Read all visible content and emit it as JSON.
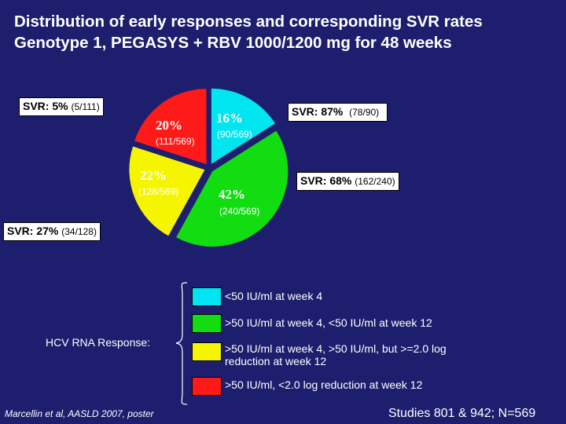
{
  "title": "Distribution of early responses and corresponding SVR rates Genotype 1, PEGASYS + RBV 1000/1200 mg for 48 weeks",
  "chart_data": {
    "type": "pie",
    "slices": [
      {
        "name": "<50 IU/ml at week 4",
        "percent": 16,
        "label": "16%",
        "count": "(90/569)",
        "svr_label": "SVR: 87%",
        "svr_count": "(78/90)",
        "color": "#00e5f0"
      },
      {
        "name": ">50 IU/ml at week 4, <50 IU/ml at week 12",
        "percent": 42,
        "label": "42%",
        "count": "(240/569)",
        "svr_label": "SVR: 68%",
        "svr_count": "(162/240)",
        "color": "#11dd11"
      },
      {
        "name": ">50 IU/ml at week 4, >50 IU/ml, but >=2.0 log reduction at week 12",
        "percent": 22,
        "label": "22%",
        "count": "(128/569)",
        "svr_label": "SVR: 27%",
        "svr_count": "(34/128)",
        "color": "#f5f500"
      },
      {
        "name": ">50 IU/ml, <2.0 log reduction at week 12",
        "percent": 20,
        "label": "20%",
        "count": "(111/569)",
        "svr_label": "SVR: 5%",
        "svr_count": "(5/111)",
        "color": "#ff1a1a"
      }
    ],
    "legend_title": "HCV RNA Response:",
    "legend": [
      {
        "label": "<50 IU/ml at week 4",
        "color": "#00e5f0"
      },
      {
        "label": ">50 IU/ml at week 4, <50 IU/ml at week 12",
        "color": "#11dd11"
      },
      {
        "label": ">50 IU/ml at week 4, >50 IU/ml, but >=2.0 log reduction at week 12",
        "color": "#f5f500"
      },
      {
        "label": ">50 IU/ml, <2.0 log reduction at week 12",
        "color": "#ff1a1a"
      }
    ]
  },
  "footer": {
    "citation": "Marcellin et al, AASLD 2007, poster",
    "studies": "Studies 801 & 942; N=569"
  }
}
